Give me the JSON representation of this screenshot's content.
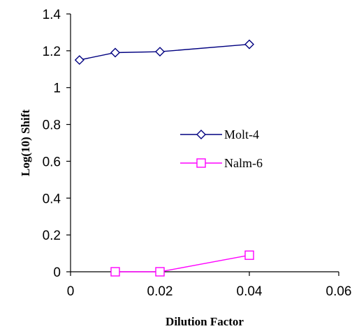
{
  "chart_data": {
    "type": "line",
    "title": "",
    "xlabel": "Dilution Factor",
    "ylabel": "Log(10) Shift",
    "xlim": [
      0,
      0.06
    ],
    "ylim": [
      0,
      1.4
    ],
    "x_ticks": [
      0,
      0.02,
      0.04,
      0.06
    ],
    "x_tick_labels": [
      "0",
      "0.02",
      "0.04",
      "0.06"
    ],
    "y_ticks": [
      0,
      0.2,
      0.4,
      0.6,
      0.8,
      1,
      1.2,
      1.4
    ],
    "y_tick_labels": [
      "0",
      "0.2",
      "0.4",
      "0.6",
      "0.8",
      "1",
      "1.2",
      "1.4"
    ],
    "grid": false,
    "legend_position": "center-right",
    "series": [
      {
        "name": "Molt-4",
        "color": "#000080",
        "marker": "diamond",
        "x": [
          0.002,
          0.01,
          0.02,
          0.04
        ],
        "y": [
          1.15,
          1.19,
          1.195,
          1.235
        ]
      },
      {
        "name": "Nalm-6",
        "color": "#ff00ff",
        "marker": "square",
        "x": [
          0.01,
          0.02,
          0.04
        ],
        "y": [
          0.0,
          0.0,
          0.09
        ]
      }
    ]
  }
}
